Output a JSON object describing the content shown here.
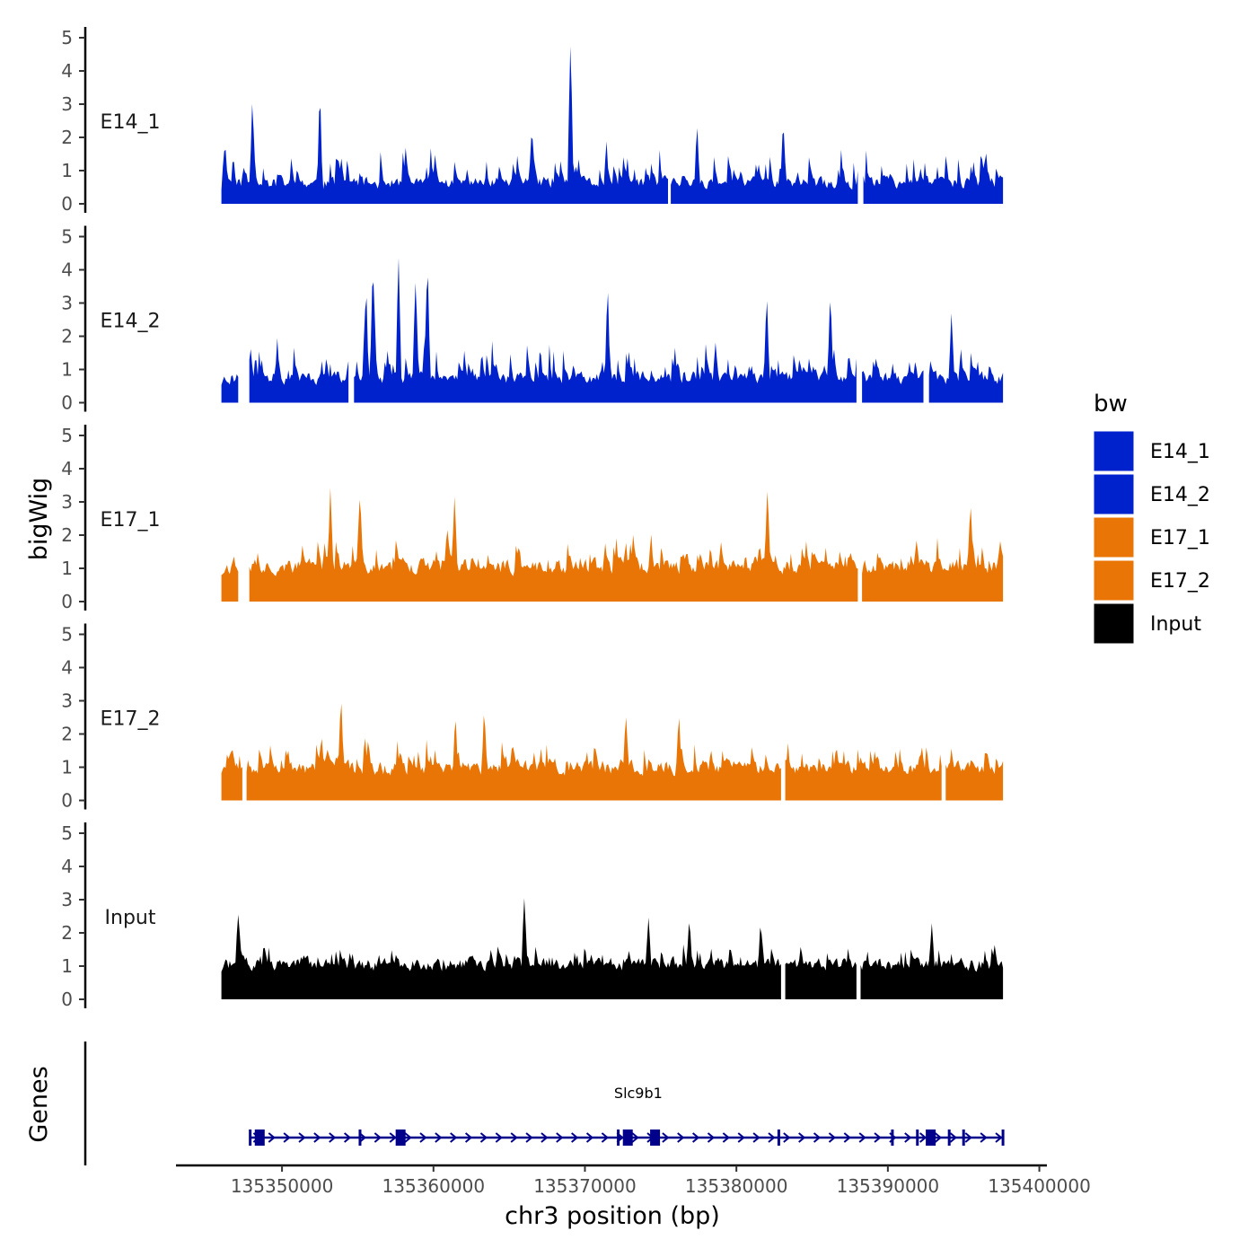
{
  "chart_data": {
    "type": "area",
    "ylabel": "bigWig",
    "xlabel": "chr3 position (bp)",
    "genes_label": "Genes",
    "ylim": [
      0,
      5
    ],
    "y_ticks": [
      "0",
      "1",
      "2",
      "3",
      "4",
      "5"
    ],
    "xlim": [
      135343000,
      135400500
    ],
    "x_ticks": [
      135350000,
      135360000,
      135370000,
      135380000,
      135390000,
      135400000
    ],
    "x_tick_labels": [
      "135350000",
      "135360000",
      "135370000",
      "135380000",
      "135390000",
      "135400000"
    ],
    "data_range": [
      135346000,
      135397600
    ],
    "legend": {
      "title": "bw",
      "entries": [
        {
          "label": "E14_1",
          "color": "#0022CC"
        },
        {
          "label": "E14_2",
          "color": "#0022CC"
        },
        {
          "label": "E17_1",
          "color": "#E87506"
        },
        {
          "label": "E17_2",
          "color": "#E87506"
        },
        {
          "label": "Input",
          "color": "#000000"
        }
      ]
    },
    "series": [
      {
        "name": "E14_1",
        "color": "#0022CC",
        "seed": 11,
        "base": 0.35,
        "noise": 0.55,
        "spike_prob": 0.22,
        "spike_height": 1.6,
        "peaks": [
          {
            "x": 135348050,
            "y": 3.35
          },
          {
            "x": 135352500,
            "y": 3.6
          },
          {
            "x": 135369050,
            "y": 5.0
          },
          {
            "x": 135366500,
            "y": 2.4
          },
          {
            "x": 135377400,
            "y": 2.5
          },
          {
            "x": 135383100,
            "y": 2.4
          }
        ],
        "gaps": [
          [
            135375500,
            135375650
          ],
          [
            135388050,
            135388300
          ]
        ]
      },
      {
        "name": "E14_2",
        "color": "#0022CC",
        "seed": 23,
        "base": 0.45,
        "noise": 0.6,
        "spike_prob": 0.24,
        "spike_height": 1.7,
        "peaks": [
          {
            "x": 135355550,
            "y": 3.7
          },
          {
            "x": 135356000,
            "y": 4.5
          },
          {
            "x": 135357700,
            "y": 4.4
          },
          {
            "x": 135359600,
            "y": 4.4
          },
          {
            "x": 135358800,
            "y": 3.7
          },
          {
            "x": 135371500,
            "y": 3.7
          },
          {
            "x": 135382000,
            "y": 3.4
          },
          {
            "x": 135386200,
            "y": 3.4
          },
          {
            "x": 135394200,
            "y": 2.8
          }
        ],
        "gaps": [
          [
            135347150,
            135347800
          ],
          [
            135354400,
            135354700
          ],
          [
            135388000,
            135388250
          ],
          [
            135392400,
            135392700
          ]
        ]
      },
      {
        "name": "E17_1",
        "color": "#E87506",
        "seed": 37,
        "base": 0.7,
        "noise": 0.7,
        "spike_prob": 0.2,
        "spike_height": 1.3,
        "peaks": [
          {
            "x": 135353200,
            "y": 3.6
          },
          {
            "x": 135355150,
            "y": 3.4
          },
          {
            "x": 135361400,
            "y": 3.3
          },
          {
            "x": 135382050,
            "y": 3.6
          },
          {
            "x": 135395450,
            "y": 3.1
          }
        ],
        "gaps": [
          [
            135347150,
            135347800
          ],
          [
            135388050,
            135388250
          ]
        ]
      },
      {
        "name": "E17_2",
        "color": "#E87506",
        "seed": 53,
        "base": 0.65,
        "noise": 0.65,
        "spike_prob": 0.2,
        "spike_height": 1.3,
        "peaks": [
          {
            "x": 135353900,
            "y": 3.2
          },
          {
            "x": 135361450,
            "y": 2.7
          },
          {
            "x": 135363350,
            "y": 2.8
          },
          {
            "x": 135372700,
            "y": 2.7
          },
          {
            "x": 135376200,
            "y": 2.7
          }
        ],
        "gaps": [
          [
            135347400,
            135347650
          ],
          [
            135382950,
            135383200
          ],
          [
            135393550,
            135393750
          ]
        ]
      },
      {
        "name": "Input",
        "color": "#000000",
        "seed": 71,
        "base": 0.75,
        "noise": 0.6,
        "spike_prob": 0.15,
        "spike_height": 1.0,
        "peaks": [
          {
            "x": 135347100,
            "y": 2.6
          },
          {
            "x": 135366000,
            "y": 3.1
          },
          {
            "x": 135374200,
            "y": 2.5
          },
          {
            "x": 135376900,
            "y": 2.5
          },
          {
            "x": 135381600,
            "y": 2.4
          },
          {
            "x": 135392900,
            "y": 2.3
          }
        ],
        "gaps": [
          [
            135382950,
            135383150
          ],
          [
            135387950,
            135388150
          ]
        ]
      }
    ],
    "gene": {
      "name": "Slc9b1",
      "color": "#00008B",
      "start": 135347900,
      "end": 135397600,
      "exons": [
        135348500,
        135357800,
        135372800,
        135374600,
        135392800
      ],
      "small_exons": [
        135347900,
        135355150,
        135372200,
        135382800,
        135390300,
        135391950,
        135394050,
        135395000,
        135397600
      ]
    }
  }
}
